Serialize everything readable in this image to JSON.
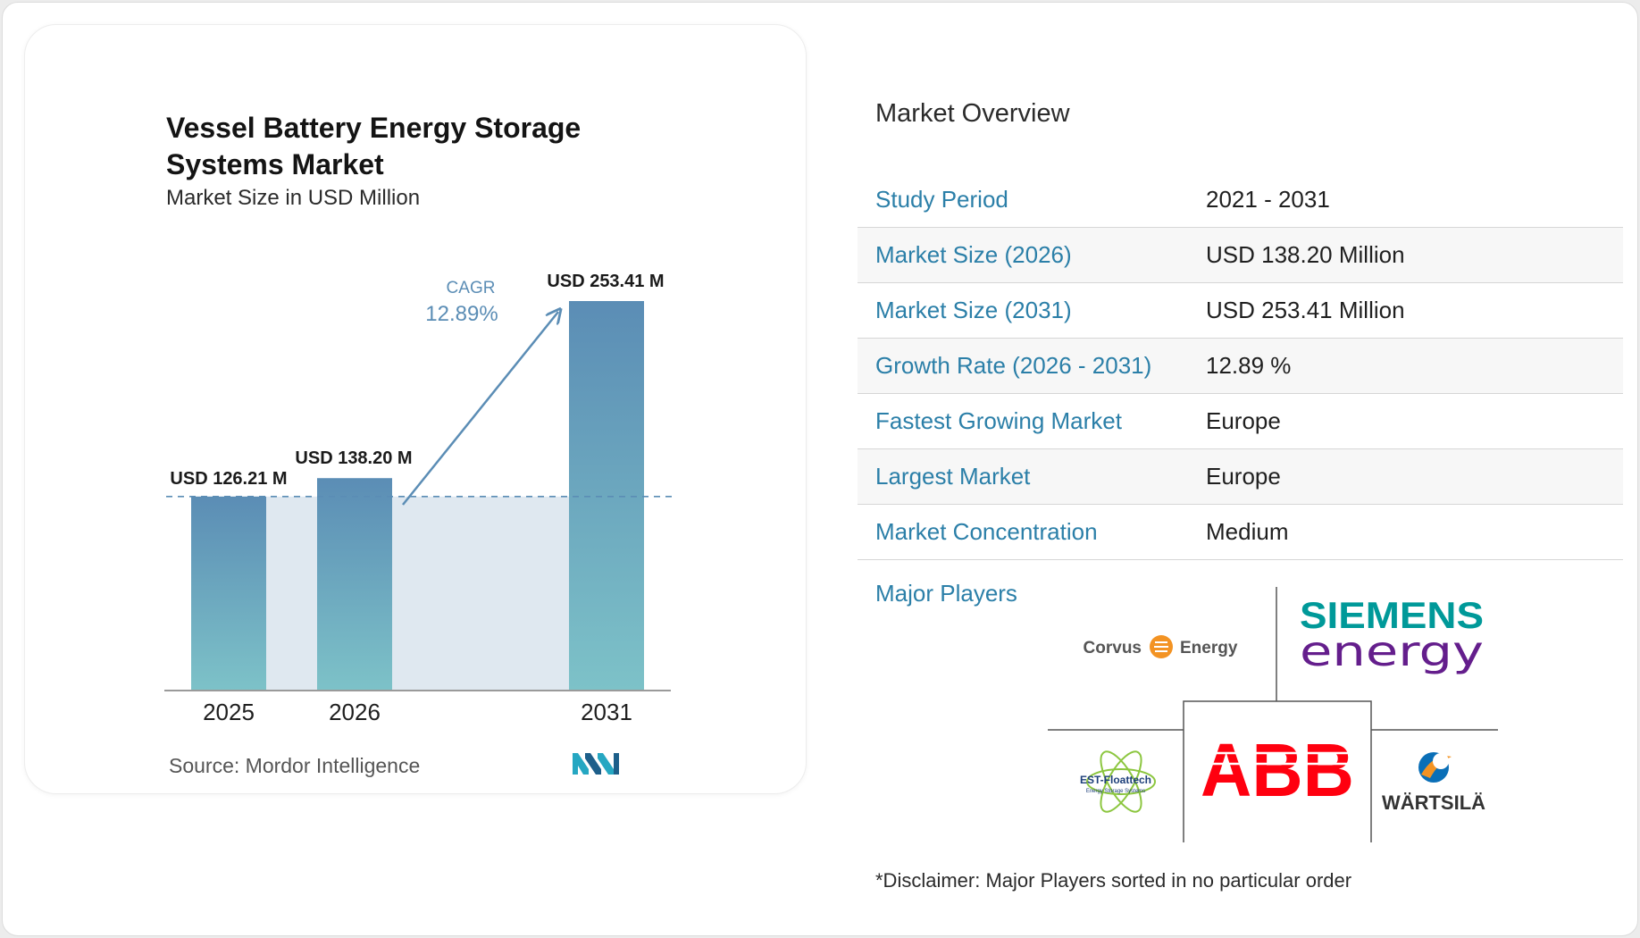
{
  "chart_data": {
    "type": "bar",
    "title": "Vessel Battery Energy Storage Systems Market",
    "subtitle": "Market Size in USD Million",
    "categories": [
      "2025",
      "2026",
      "2031"
    ],
    "values": [
      126.21,
      138.2,
      253.41
    ],
    "value_labels": [
      "USD 126.21 M",
      "USD 138.20 M",
      "USD 253.41 M"
    ],
    "cagr_label": "CAGR",
    "cagr_value": "12.89%",
    "ylim": [
      0,
      253.41
    ],
    "grid": false,
    "colors": {
      "bar_top": "#5b8db5",
      "bar_bottom": "#7dc2c8",
      "shade": "#dfe8f0",
      "arrow": "#5b8db5",
      "cagr_text": "#5b8db5"
    }
  },
  "source": "Source: Mordor Intelligence",
  "overview": {
    "title": "Market Overview",
    "rows": [
      {
        "label": "Study Period",
        "value": "2021 - 2031"
      },
      {
        "label": "Market Size (2026)",
        "value": "USD 138.20 Million"
      },
      {
        "label": "Market Size (2031)",
        "value": "USD 253.41 Million"
      },
      {
        "label": "Growth Rate (2026 - 2031)",
        "value": "12.89 %"
      },
      {
        "label": "Fastest Growing Market",
        "value": "Europe"
      },
      {
        "label": "Largest Market",
        "value": "Europe"
      },
      {
        "label": "Market Concentration",
        "value": "Medium"
      }
    ],
    "players_label": "Major Players",
    "players": {
      "corvus_left": "Corvus",
      "corvus_right": "Energy",
      "siemens_top": "SIEMENS",
      "siemens_bottom": "energy",
      "abb": "ABB",
      "est_name": "EST-Floattech",
      "est_sub": "Energy Storage Systems",
      "wartsila": "WÄRTSILÄ"
    },
    "disclaimer": "*Disclaimer: Major Players sorted in no particular order"
  },
  "colors": {
    "accent_blue": "#2b7fa8",
    "siemens_teal": "#009999",
    "siemens_purple": "#641e8c",
    "abb_red": "#ff000f",
    "corvus_orange": "#f39323"
  }
}
